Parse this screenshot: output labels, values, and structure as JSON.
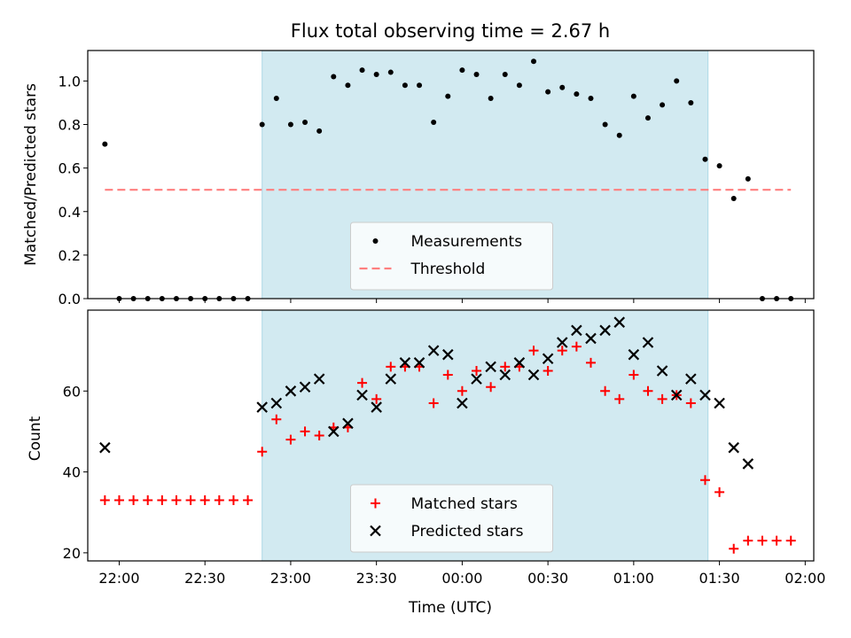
{
  "chart_data": [
    {
      "type": "scatter",
      "title": "Flux total observing time = 2.67 h",
      "xlabel": "",
      "ylabel": "Matched/Predicted stars",
      "xlim": [
        "21:49",
        "02:03"
      ],
      "ylim": [
        0,
        1.14
      ],
      "yticks": [
        0.0,
        0.2,
        0.4,
        0.6,
        0.8,
        1.0
      ],
      "ytick_labels": [
        "0.0",
        "0.2",
        "0.4",
        "0.6",
        "0.8",
        "1.0"
      ],
      "shaded_region": {
        "start": "22:50",
        "end": "01:26",
        "color": "#add8e6"
      },
      "legend_position": "lower center",
      "series": [
        {
          "name": "Measurements",
          "marker": "dot",
          "color": "#000000",
          "points": [
            [
              "21:55",
              0.71
            ],
            [
              "22:00",
              0.0
            ],
            [
              "22:05",
              0.0
            ],
            [
              "22:10",
              0.0
            ],
            [
              "22:15",
              0.0
            ],
            [
              "22:20",
              0.0
            ],
            [
              "22:25",
              0.0
            ],
            [
              "22:30",
              0.0
            ],
            [
              "22:35",
              0.0
            ],
            [
              "22:40",
              0.0
            ],
            [
              "22:45",
              0.0
            ],
            [
              "22:50",
              0.8
            ],
            [
              "22:55",
              0.92
            ],
            [
              "23:00",
              0.8
            ],
            [
              "23:05",
              0.81
            ],
            [
              "23:10",
              0.77
            ],
            [
              "23:15",
              1.02
            ],
            [
              "23:20",
              0.98
            ],
            [
              "23:25",
              1.05
            ],
            [
              "23:30",
              1.03
            ],
            [
              "23:35",
              1.04
            ],
            [
              "23:40",
              0.98
            ],
            [
              "23:45",
              0.98
            ],
            [
              "23:50",
              0.81
            ],
            [
              "23:55",
              0.93
            ],
            [
              "00:00",
              1.05
            ],
            [
              "00:05",
              1.03
            ],
            [
              "00:10",
              0.92
            ],
            [
              "00:15",
              1.03
            ],
            [
              "00:20",
              0.98
            ],
            [
              "00:25",
              1.09
            ],
            [
              "00:30",
              0.95
            ],
            [
              "00:35",
              0.97
            ],
            [
              "00:40",
              0.94
            ],
            [
              "00:45",
              0.92
            ],
            [
              "00:50",
              0.8
            ],
            [
              "00:55",
              0.75
            ],
            [
              "01:00",
              0.93
            ],
            [
              "01:05",
              0.83
            ],
            [
              "01:10",
              0.89
            ],
            [
              "01:15",
              1.0
            ],
            [
              "01:20",
              0.9
            ],
            [
              "01:25",
              0.64
            ],
            [
              "01:30",
              0.61
            ],
            [
              "01:35",
              0.46
            ],
            [
              "01:40",
              0.55
            ],
            [
              "01:45",
              0.0
            ],
            [
              "01:50",
              0.0
            ],
            [
              "01:55",
              0.0
            ]
          ]
        },
        {
          "name": "Threshold",
          "marker": "dashed-line",
          "color": "#ff7f7f",
          "points": [
            [
              "21:55",
              0.5
            ],
            [
              "01:55",
              0.5
            ]
          ]
        }
      ]
    },
    {
      "type": "scatter",
      "title": "",
      "xlabel": "Time (UTC)",
      "ylabel": "Count",
      "xlim": [
        "21:49",
        "02:03"
      ],
      "ylim": [
        18,
        80
      ],
      "yticks": [
        20,
        40,
        60
      ],
      "ytick_labels": [
        "20",
        "40",
        "60"
      ],
      "xticks": [
        "22:00",
        "22:30",
        "23:00",
        "23:30",
        "00:00",
        "00:30",
        "01:00",
        "01:30",
        "02:00"
      ],
      "shaded_region": {
        "start": "22:50",
        "end": "01:26",
        "color": "#add8e6"
      },
      "legend_position": "lower center",
      "series": [
        {
          "name": "Matched stars",
          "marker": "plus",
          "color": "#ff0000",
          "points": [
            [
              "21:55",
              33
            ],
            [
              "22:00",
              33
            ],
            [
              "22:05",
              33
            ],
            [
              "22:10",
              33
            ],
            [
              "22:15",
              33
            ],
            [
              "22:20",
              33
            ],
            [
              "22:25",
              33
            ],
            [
              "22:30",
              33
            ],
            [
              "22:35",
              33
            ],
            [
              "22:40",
              33
            ],
            [
              "22:45",
              33
            ],
            [
              "22:50",
              45
            ],
            [
              "22:55",
              53
            ],
            [
              "23:00",
              48
            ],
            [
              "23:05",
              50
            ],
            [
              "23:10",
              49
            ],
            [
              "23:15",
              51
            ],
            [
              "23:20",
              51
            ],
            [
              "23:25",
              62
            ],
            [
              "23:30",
              58
            ],
            [
              "23:35",
              66
            ],
            [
              "23:40",
              66
            ],
            [
              "23:45",
              66
            ],
            [
              "23:50",
              57
            ],
            [
              "23:55",
              64
            ],
            [
              "00:00",
              60
            ],
            [
              "00:05",
              65
            ],
            [
              "00:10",
              61
            ],
            [
              "00:15",
              66
            ],
            [
              "00:20",
              66
            ],
            [
              "00:25",
              70
            ],
            [
              "00:30",
              65
            ],
            [
              "00:35",
              70
            ],
            [
              "00:40",
              71
            ],
            [
              "00:45",
              67
            ],
            [
              "00:50",
              60
            ],
            [
              "00:55",
              58
            ],
            [
              "01:00",
              64
            ],
            [
              "01:05",
              60
            ],
            [
              "01:10",
              58
            ],
            [
              "01:15",
              59
            ],
            [
              "01:20",
              57
            ],
            [
              "01:25",
              38
            ],
            [
              "01:30",
              35
            ],
            [
              "01:35",
              21
            ],
            [
              "01:40",
              23
            ],
            [
              "01:45",
              23
            ],
            [
              "01:50",
              23
            ],
            [
              "01:55",
              23
            ]
          ]
        },
        {
          "name": "Predicted stars",
          "marker": "x",
          "color": "#000000",
          "points": [
            [
              "21:55",
              46
            ],
            [
              "22:50",
              56
            ],
            [
              "22:55",
              57
            ],
            [
              "23:00",
              60
            ],
            [
              "23:05",
              61
            ],
            [
              "23:10",
              63
            ],
            [
              "23:15",
              50
            ],
            [
              "23:20",
              52
            ],
            [
              "23:25",
              59
            ],
            [
              "23:30",
              56
            ],
            [
              "23:35",
              63
            ],
            [
              "23:40",
              67
            ],
            [
              "23:45",
              67
            ],
            [
              "23:50",
              70
            ],
            [
              "23:55",
              69
            ],
            [
              "00:00",
              57
            ],
            [
              "00:05",
              63
            ],
            [
              "00:10",
              66
            ],
            [
              "00:15",
              64
            ],
            [
              "00:20",
              67
            ],
            [
              "00:25",
              64
            ],
            [
              "00:30",
              68
            ],
            [
              "00:35",
              72
            ],
            [
              "00:40",
              75
            ],
            [
              "00:45",
              73
            ],
            [
              "00:50",
              75
            ],
            [
              "00:55",
              77
            ],
            [
              "01:00",
              69
            ],
            [
              "01:05",
              72
            ],
            [
              "01:10",
              65
            ],
            [
              "01:15",
              59
            ],
            [
              "01:20",
              63
            ],
            [
              "01:25",
              59
            ],
            [
              "01:30",
              57
            ],
            [
              "01:35",
              46
            ],
            [
              "01:40",
              42
            ]
          ]
        }
      ]
    }
  ]
}
